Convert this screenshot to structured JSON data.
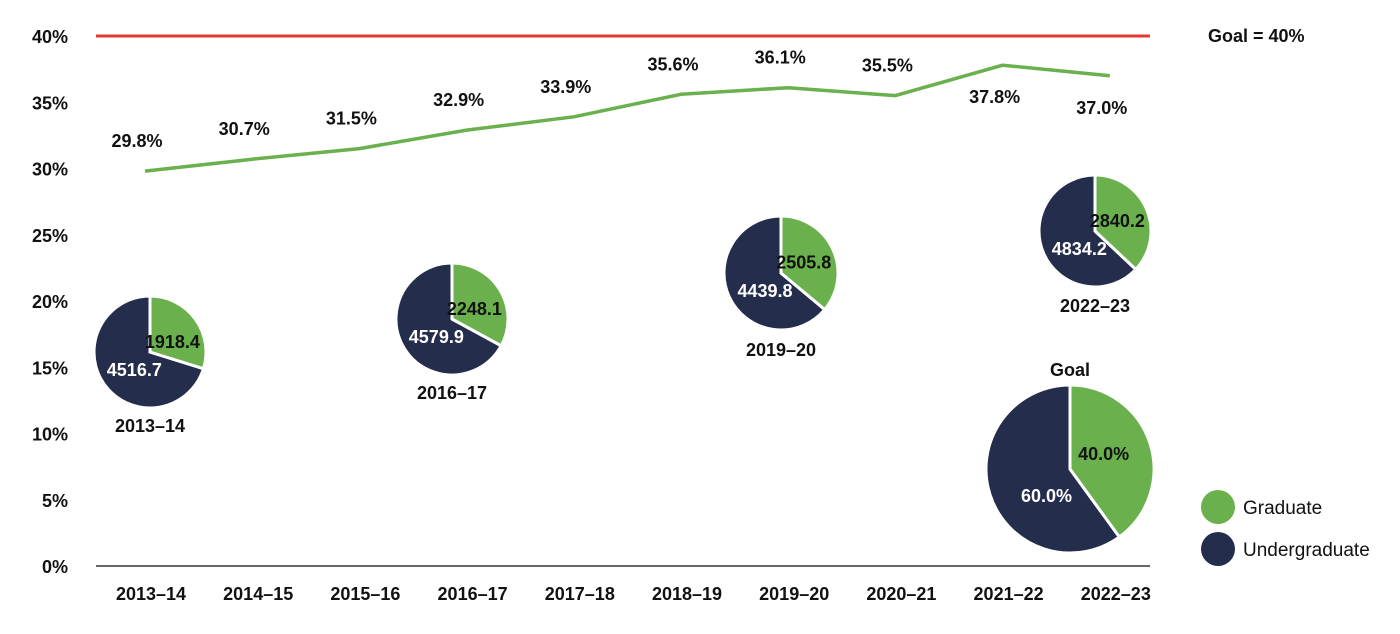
{
  "chart_data": {
    "type": "line",
    "categories": [
      "2013–14",
      "2014–15",
      "2015–16",
      "2016–17",
      "2017–18",
      "2018–19",
      "2019–20",
      "2020–21",
      "2021–22",
      "2022–23"
    ],
    "y_ticks": [
      "0%",
      "5%",
      "10%",
      "15%",
      "20%",
      "25%",
      "30%",
      "35%",
      "40%"
    ],
    "ylim": [
      0,
      40
    ],
    "grid": false,
    "series": [
      {
        "values": [
          29.8,
          30.7,
          31.5,
          32.9,
          33.9,
          35.6,
          36.1,
          35.5,
          37.8,
          37.0
        ],
        "labels": [
          "29.8%",
          "30.7%",
          "31.5%",
          "32.9%",
          "33.9%",
          "35.6%",
          "36.1%",
          "35.5%",
          "37.8%",
          "37.0%"
        ],
        "color": "#6ab04c"
      }
    ],
    "goal_line": {
      "value": 40,
      "label": "Goal = 40%",
      "color": "#e53935"
    },
    "pies": [
      {
        "year": "2013–14",
        "graduate": 1918.4,
        "undergraduate": 4516.7,
        "graduate_label": "1918.4",
        "undergraduate_label": "4516.7"
      },
      {
        "year": "2016–17",
        "graduate": 2248.1,
        "undergraduate": 4579.9,
        "graduate_label": "2248.1",
        "undergraduate_label": "4579.9"
      },
      {
        "year": "2019–20",
        "graduate": 2505.8,
        "undergraduate": 4439.8,
        "graduate_label": "2505.8",
        "undergraduate_label": "4439.8"
      },
      {
        "year": "2022–23",
        "graduate": 2840.2,
        "undergraduate": 4834.2,
        "graduate_label": "2840.2",
        "undergraduate_label": "4834.2"
      },
      {
        "year": "Goal",
        "graduate": 40.0,
        "undergraduate": 60.0,
        "graduate_label": "40.0%",
        "undergraduate_label": "60.0%"
      }
    ],
    "legend": {
      "placement": "bottom-right",
      "items": [
        {
          "label": "Graduate",
          "color": "#6ab04c"
        },
        {
          "label": "Undergraduate",
          "color": "#252d4d"
        }
      ]
    },
    "colors": {
      "graduate": "#6ab04c",
      "undergraduate": "#252d4d",
      "axis": "#666666",
      "goal": "#e53935"
    }
  }
}
